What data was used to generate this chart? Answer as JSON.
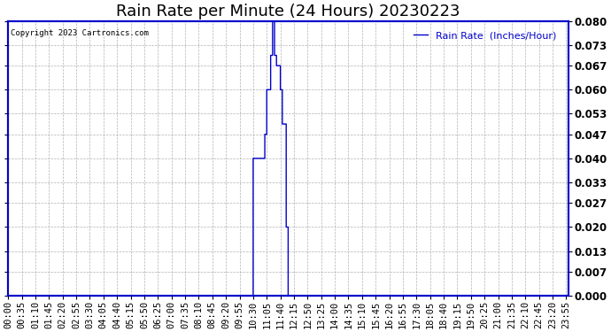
{
  "title": "Rain Rate per Minute (24 Hours) 20230223",
  "copyright_text": "Copyright 2023 Cartronics.com",
  "legend_label": "Rain Rate  (Inches/Hour)",
  "ylim": [
    0.0,
    0.08
  ],
  "yticks": [
    0.0,
    0.007,
    0.013,
    0.02,
    0.027,
    0.033,
    0.04,
    0.047,
    0.053,
    0.06,
    0.067,
    0.073,
    0.08
  ],
  "line_color": "#0000cc",
  "grid_color": "#aaaaaa",
  "plot_bg_color": "#ffffff",
  "fig_bg_color": "#ffffff",
  "title_fontsize": 13,
  "tick_fontsize": 7.5,
  "legend_fontsize": 8,
  "xtick_labels": [
    "00:00",
    "00:35",
    "01:10",
    "01:45",
    "02:20",
    "02:55",
    "03:30",
    "04:05",
    "04:40",
    "05:15",
    "05:50",
    "06:25",
    "07:00",
    "07:35",
    "08:10",
    "08:45",
    "09:20",
    "09:55",
    "10:30",
    "11:05",
    "11:40",
    "12:15",
    "12:50",
    "13:25",
    "14:00",
    "14:35",
    "15:10",
    "15:45",
    "16:20",
    "16:55",
    "17:30",
    "18:05",
    "18:40",
    "19:15",
    "19:50",
    "20:25",
    "21:00",
    "21:35",
    "22:10",
    "22:45",
    "23:20",
    "23:55"
  ],
  "rain_events": [
    {
      "time": "10:30",
      "value": 0.04
    },
    {
      "time": "10:35",
      "value": 0.04
    },
    {
      "time": "10:40",
      "value": 0.04
    },
    {
      "time": "10:45",
      "value": 0.04
    },
    {
      "time": "10:50",
      "value": 0.04
    },
    {
      "time": "10:55",
      "value": 0.04
    },
    {
      "time": "11:00",
      "value": 0.047
    },
    {
      "time": "11:05",
      "value": 0.06
    },
    {
      "time": "11:10",
      "value": 0.06
    },
    {
      "time": "11:15",
      "value": 0.07
    },
    {
      "time": "11:20",
      "value": 0.08
    },
    {
      "time": "11:25",
      "value": 0.07
    },
    {
      "time": "11:30",
      "value": 0.067
    },
    {
      "time": "11:35",
      "value": 0.067
    },
    {
      "time": "11:40",
      "value": 0.06
    },
    {
      "time": "11:45",
      "value": 0.05
    },
    {
      "time": "11:50",
      "value": 0.05
    },
    {
      "time": "11:55",
      "value": 0.02
    }
  ]
}
